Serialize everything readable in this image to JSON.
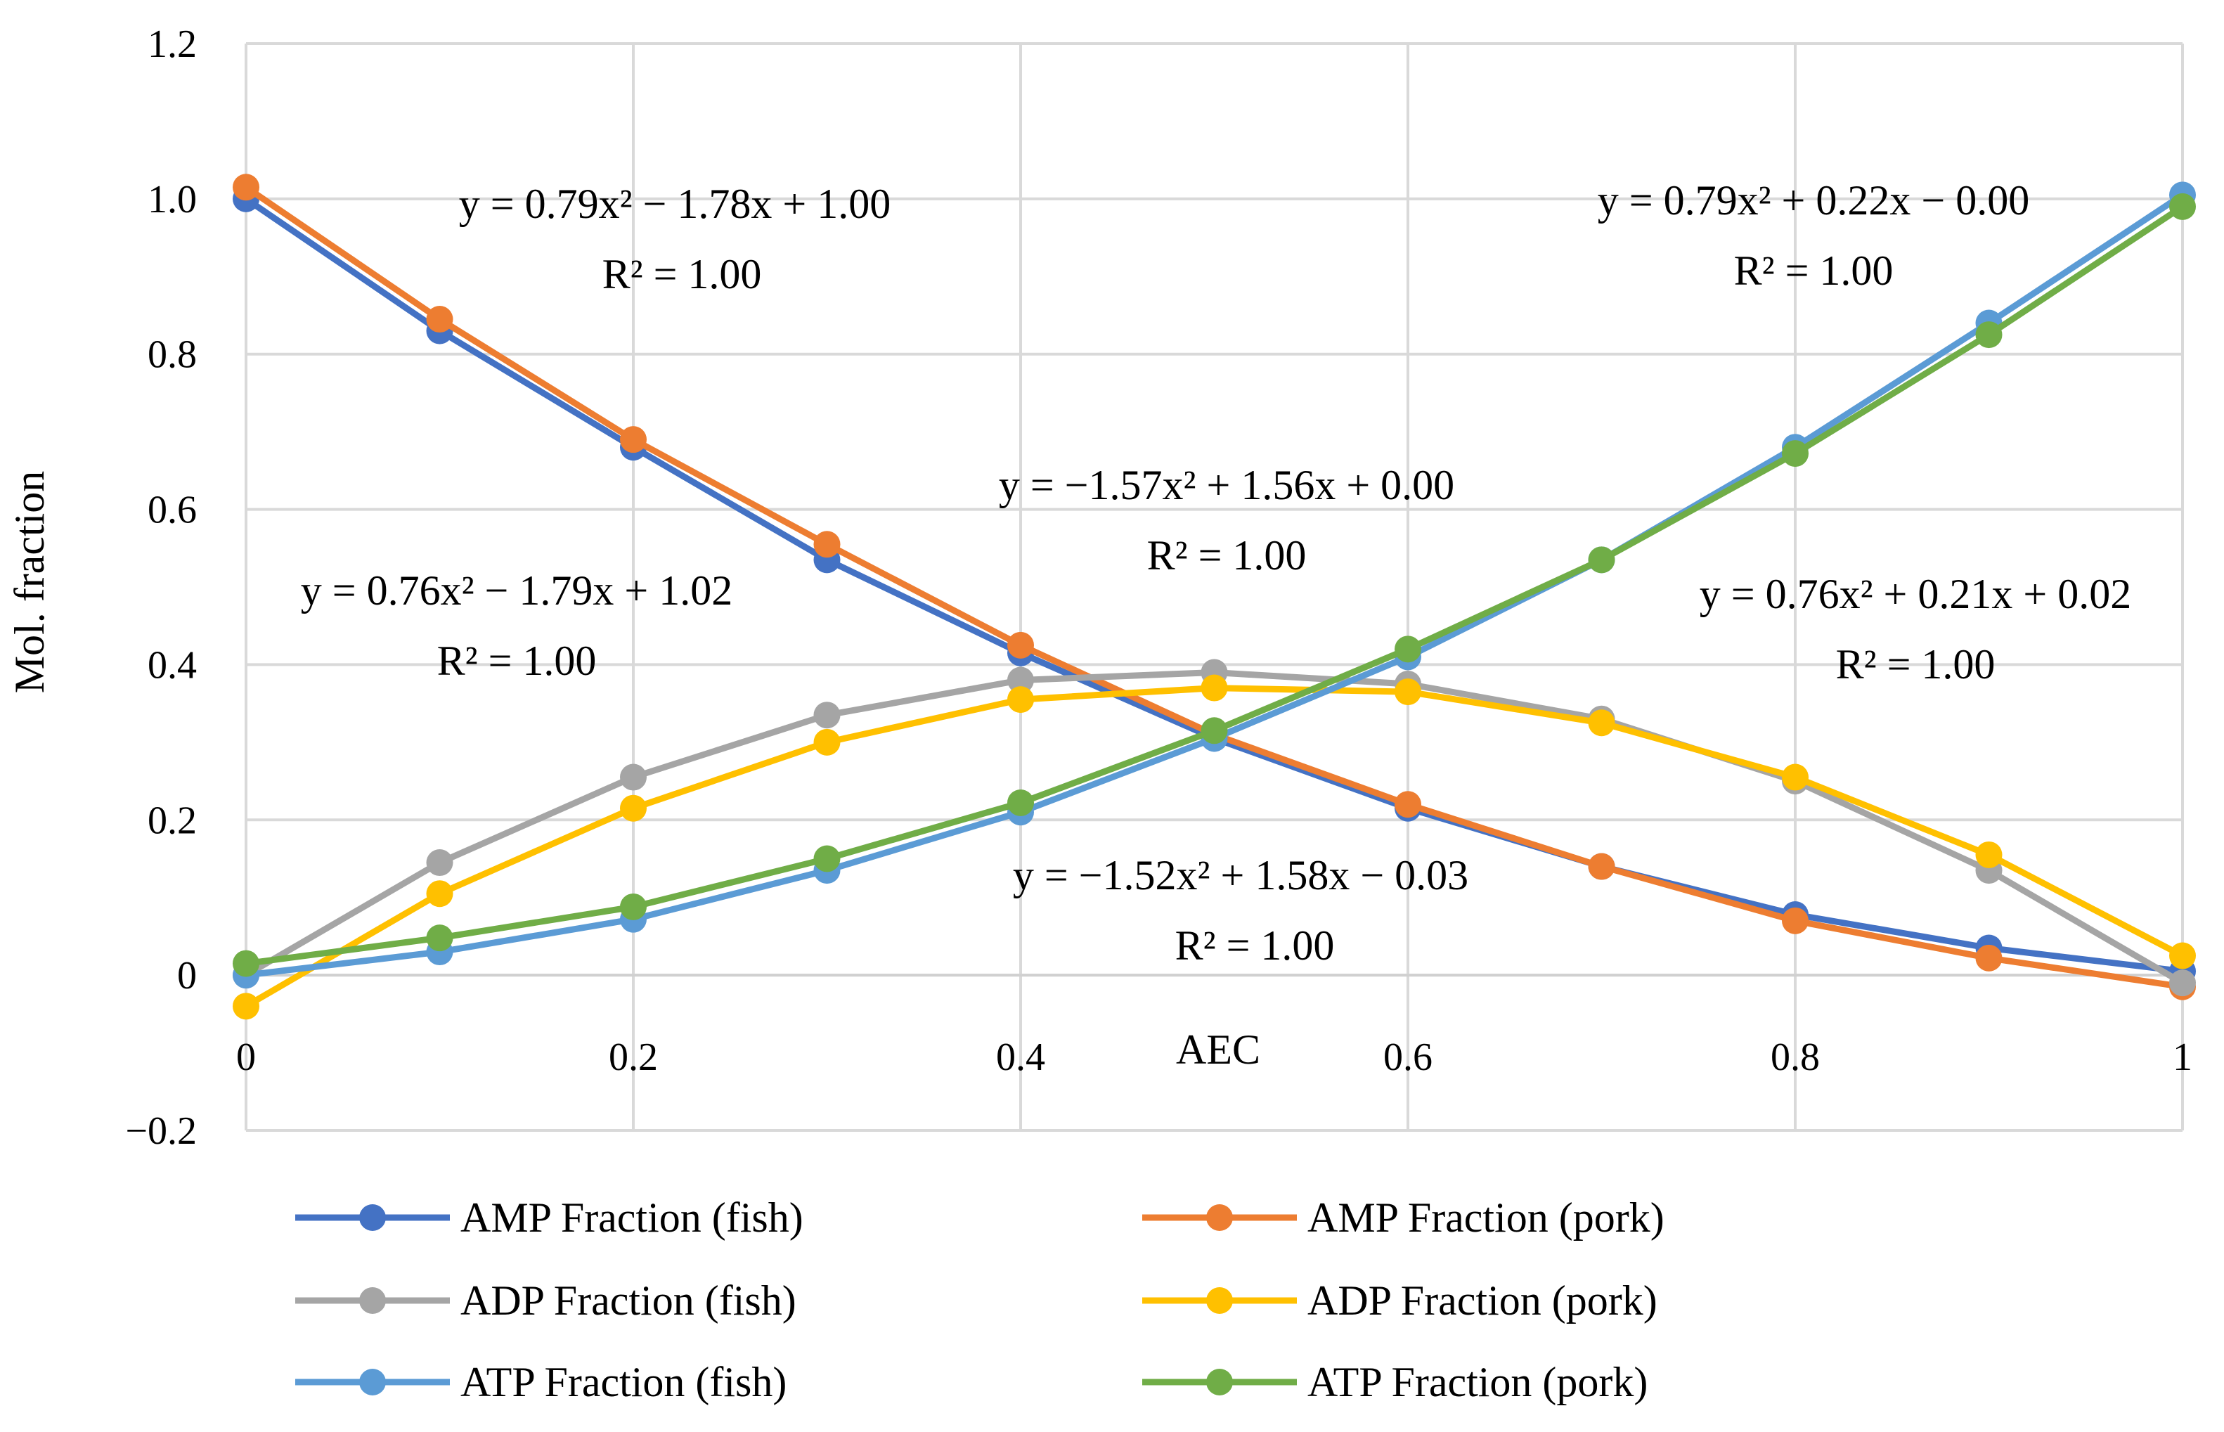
{
  "chart_data": {
    "type": "line",
    "title": "",
    "xlabel": "AEC",
    "ylabel": "Mol. fraction",
    "xlim": [
      0,
      1
    ],
    "ylim": [
      -0.2,
      1.2
    ],
    "x_ticks": [
      "0",
      "0.2",
      "0.4",
      "0.6",
      "0.8",
      "1"
    ],
    "x_tick_values": [
      0,
      0.2,
      0.4,
      0.6,
      0.8,
      1
    ],
    "y_ticks": [
      "−0.2",
      "0",
      "0.2",
      "0.4",
      "0.6",
      "0.8",
      "1.0",
      "1.2"
    ],
    "y_tick_values": [
      -0.2,
      0,
      0.2,
      0.4,
      0.6,
      0.8,
      1.0,
      1.2
    ],
    "grid": true,
    "legend_position": "bottom",
    "x": [
      0,
      0.1,
      0.2,
      0.3,
      0.4,
      0.5,
      0.6,
      0.7,
      0.8,
      0.9,
      1.0
    ],
    "series": [
      {
        "name": "AMP Fraction (fish)",
        "color": "#4472C4",
        "values": [
          1.0,
          0.83,
          0.68,
          0.535,
          0.415,
          0.305,
          0.215,
          0.14,
          0.078,
          0.035,
          0.005
        ]
      },
      {
        "name": "AMP Fraction (pork)",
        "color": "#ED7D31",
        "values": [
          1.015,
          0.845,
          0.69,
          0.555,
          0.425,
          0.31,
          0.22,
          0.14,
          0.07,
          0.022,
          -0.015
        ]
      },
      {
        "name": "ADP Fraction (fish)",
        "color": "#A5A5A5",
        "values": [
          0.0,
          0.145,
          0.255,
          0.335,
          0.38,
          0.39,
          0.375,
          0.33,
          0.25,
          0.135,
          -0.01
        ]
      },
      {
        "name": "ADP Fraction (pork)",
        "color": "#FFC000",
        "values": [
          -0.04,
          0.105,
          0.215,
          0.3,
          0.355,
          0.37,
          0.365,
          0.325,
          0.255,
          0.155,
          0.025
        ]
      },
      {
        "name": "ATP Fraction (fish)",
        "color": "#5B9BD5",
        "values": [
          0.0,
          0.03,
          0.072,
          0.135,
          0.21,
          0.305,
          0.41,
          0.535,
          0.68,
          0.84,
          1.005
        ]
      },
      {
        "name": "ATP Fraction (pork)",
        "color": "#70AD47",
        "values": [
          0.015,
          0.048,
          0.088,
          0.15,
          0.222,
          0.315,
          0.42,
          0.535,
          0.672,
          0.825,
          0.99
        ]
      }
    ],
    "annotations": [
      {
        "eq": "y = 0.79x² − 1.78x + 1.00",
        "r2": "R² = 1.00"
      },
      {
        "eq": "y = 0.79x² + 0.22x − 0.00",
        "r2": "R² = 1.00"
      },
      {
        "eq": "y = −1.57x² + 1.56x + 0.00",
        "r2": "R² = 1.00"
      },
      {
        "eq": "y = 0.76x² − 1.79x + 1.02",
        "r2": "R² = 1.00"
      },
      {
        "eq": "y = 0.76x² + 0.21x + 0.02",
        "r2": "R² = 1.00"
      },
      {
        "eq": "y = −1.52x² + 1.58x − 0.03",
        "r2": "R² = 1.00"
      }
    ]
  }
}
